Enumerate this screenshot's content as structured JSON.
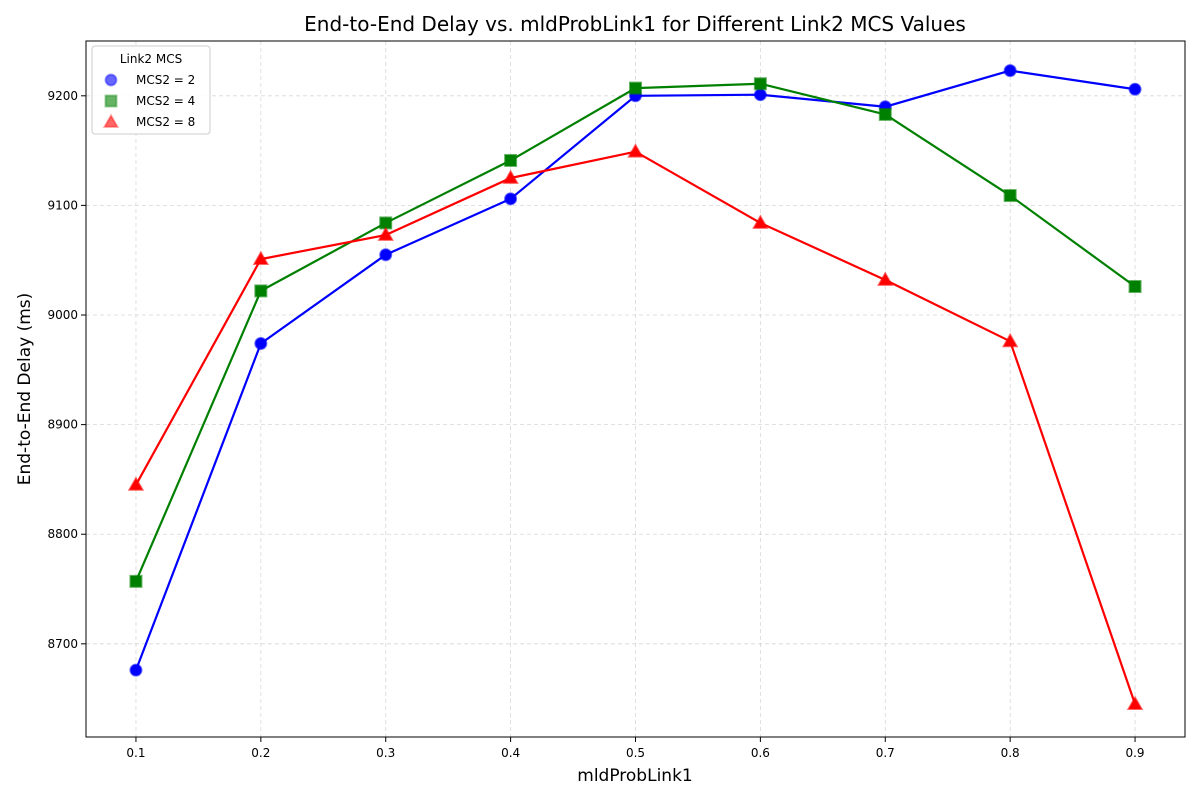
{
  "chart_data": {
    "type": "line",
    "title": "End-to-End Delay vs. mldProbLink1 for Different Link2 MCS Values",
    "xlabel": "mldProbLink1",
    "ylabel": "End-to-End Delay (ms)",
    "x": [
      0.1,
      0.2,
      0.3,
      0.4,
      0.5,
      0.6,
      0.7,
      0.8,
      0.9
    ],
    "xlim": [
      0.06,
      0.94
    ],
    "ylim": [
      8615,
      9250
    ],
    "x_ticks": [
      "0.1",
      "0.2",
      "0.3",
      "0.4",
      "0.5",
      "0.6",
      "0.7",
      "0.8",
      "0.9"
    ],
    "y_ticks": [
      "8700",
      "8800",
      "8900",
      "9000",
      "9100",
      "9200"
    ],
    "grid": true,
    "legend": {
      "title": "Link2 MCS",
      "placement": "top-left"
    },
    "series": [
      {
        "name": "MCS2 = 2",
        "color": "#0000ff",
        "marker": "circle",
        "values": [
          8676,
          8974,
          9055,
          9106,
          9200,
          9201,
          9190,
          9223,
          9206
        ]
      },
      {
        "name": "MCS2 = 4",
        "color": "#008000",
        "marker": "square",
        "values": [
          8757,
          9022,
          9084,
          9141,
          9207,
          9211,
          9183,
          9109,
          9026
        ]
      },
      {
        "name": "MCS2 = 8",
        "color": "#ff0000",
        "marker": "triangle",
        "values": [
          8845,
          9051,
          9073,
          9125,
          9149,
          9084,
          9032,
          8976,
          8645
        ]
      }
    ]
  }
}
